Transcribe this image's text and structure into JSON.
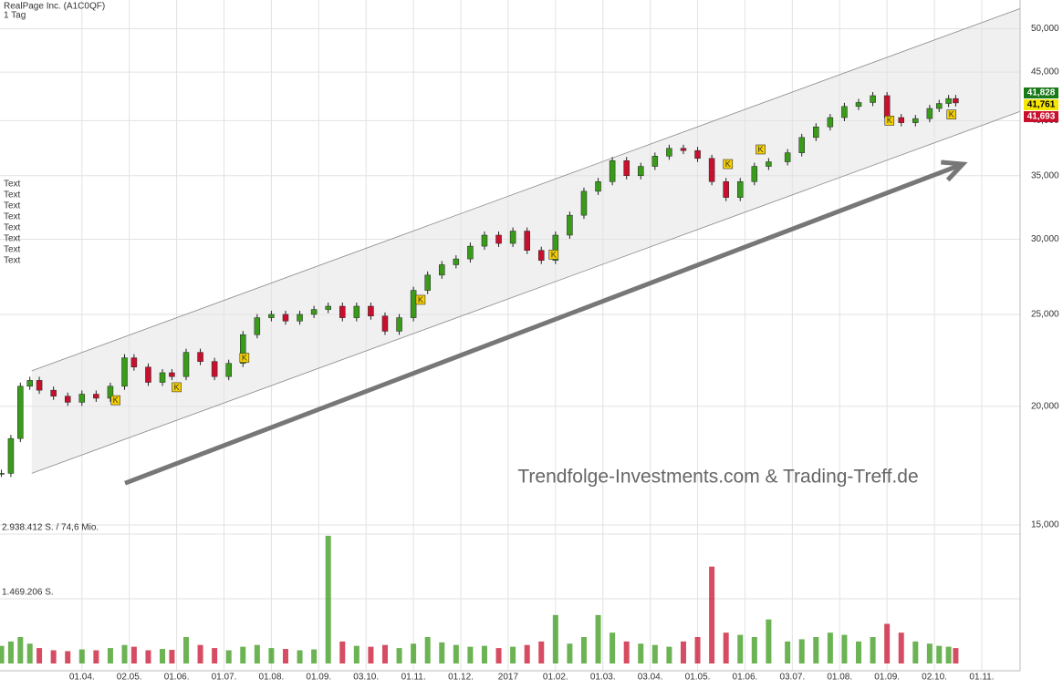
{
  "chart_data": {
    "type": "candlestick",
    "title": "RealPage Inc. (A1C0QF)",
    "subtitle": "1 Tag",
    "side_texts": [
      "Text",
      "Text",
      "Text",
      "Text",
      "Text",
      "Text",
      "Text",
      "Text"
    ],
    "watermark": "Trendfolge-Investments.com & Trading-Treff.de",
    "log_scale": true,
    "grid": true,
    "xlim": [
      1.27,
      22.81
    ],
    "xticks": [
      {
        "value": 3,
        "label": "01.04."
      },
      {
        "value": 4,
        "label": "02.05."
      },
      {
        "value": 5,
        "label": "01.06."
      },
      {
        "value": 6,
        "label": "01.07."
      },
      {
        "value": 7,
        "label": "01.08."
      },
      {
        "value": 8,
        "label": "01.09."
      },
      {
        "value": 9,
        "label": "03.10."
      },
      {
        "value": 10,
        "label": "01.11."
      },
      {
        "value": 11,
        "label": "01.12."
      },
      {
        "value": 12,
        "label": "2017"
      },
      {
        "value": 13,
        "label": "01.02."
      },
      {
        "value": 14,
        "label": "01.03."
      },
      {
        "value": 15,
        "label": "03.04."
      },
      {
        "value": 16,
        "label": "01.05."
      },
      {
        "value": 17,
        "label": "01.06."
      },
      {
        "value": 18,
        "label": "03.07."
      },
      {
        "value": 19,
        "label": "01.08."
      },
      {
        "value": 20,
        "label": "01.09."
      },
      {
        "value": 21,
        "label": "02.10."
      },
      {
        "value": 22,
        "label": "01.11."
      }
    ],
    "ylim": [
      15000,
      53600
    ],
    "yticks": [
      {
        "value": 15000,
        "label": "15,000"
      },
      {
        "value": 20000,
        "label": "20,000"
      },
      {
        "value": 25000,
        "label": "25,000"
      },
      {
        "value": 30000,
        "label": "30,000"
      },
      {
        "value": 35000,
        "label": "35,000"
      },
      {
        "value": 40000,
        "label": "40,000"
      },
      {
        "value": 45000,
        "label": "45,000"
      },
      {
        "value": 50000,
        "label": "50,000"
      }
    ],
    "up_color": "#3a9a1a",
    "down_color": "#c8102e",
    "x": [
      1.3,
      1.5,
      1.7,
      1.9,
      2.1,
      2.4,
      2.7,
      3.0,
      3.3,
      3.6,
      3.9,
      4.1,
      4.4,
      4.7,
      4.9,
      5.2,
      5.5,
      5.8,
      6.1,
      6.4,
      6.7,
      7.0,
      7.3,
      7.6,
      7.9,
      8.2,
      8.5,
      8.8,
      9.1,
      9.4,
      9.7,
      10.0,
      10.3,
      10.6,
      10.9,
      11.2,
      11.5,
      11.8,
      12.1,
      12.4,
      12.7,
      13.0,
      13.3,
      13.6,
      13.9,
      14.2,
      14.5,
      14.8,
      15.1,
      15.4,
      15.7,
      16.0,
      16.3,
      16.6,
      16.9,
      17.2,
      17.5,
      17.9,
      18.2,
      18.5,
      18.8,
      19.1,
      19.4,
      19.7,
      20.0,
      20.3,
      20.6,
      20.9,
      21.1,
      21.3,
      21.45
    ],
    "close": [
      17000,
      18500,
      21000,
      21300,
      20800,
      20500,
      20200,
      20600,
      20400,
      21000,
      22500,
      22000,
      21200,
      21700,
      21500,
      22800,
      22300,
      21500,
      22200,
      23800,
      24800,
      25000,
      24600,
      25000,
      25300,
      25500,
      24800,
      25500,
      24900,
      24000,
      24800,
      26500,
      27500,
      28200,
      28600,
      29500,
      30300,
      29700,
      30600,
      29200,
      28500,
      30300,
      31800,
      33700,
      34500,
      36300,
      35000,
      35800,
      36700,
      37400,
      37200,
      36500,
      34500,
      33200,
      34500,
      35800,
      36200,
      37000,
      38400,
      39400,
      40300,
      41400,
      41800,
      42500,
      40300,
      39800,
      40200,
      41200,
      41700,
      42200,
      41761
    ],
    "volume_ylim": [
      0,
      2938412
    ],
    "volume_ticks": [
      {
        "value": 2938412,
        "label": "2.938.412 S. / 74,6 Mio."
      },
      {
        "value": 1469206,
        "label": "1.469.206 S."
      }
    ],
    "volume": [
      400000,
      500000,
      600000,
      450000,
      350000,
      300000,
      280000,
      320000,
      300000,
      350000,
      420000,
      380000,
      300000,
      330000,
      310000,
      600000,
      420000,
      350000,
      300000,
      380000,
      420000,
      350000,
      330000,
      300000,
      320000,
      2900000,
      500000,
      400000,
      380000,
      420000,
      350000,
      450000,
      600000,
      480000,
      420000,
      380000,
      400000,
      350000,
      380000,
      420000,
      500000,
      1100000,
      450000,
      600000,
      1100000,
      700000,
      500000,
      450000,
      420000,
      380000,
      500000,
      600000,
      2200000,
      700000,
      650000,
      600000,
      1000000,
      500000,
      550000,
      600000,
      700000,
      650000,
      500000,
      600000,
      900000,
      700000,
      500000,
      450000,
      400000,
      380000,
      350000
    ],
    "channel": {
      "upper": [
        [
          1.94,
          21800
        ],
        [
          22.81,
          52500
        ]
      ],
      "lower": [
        [
          1.94,
          17000
        ],
        [
          22.81,
          40900
        ]
      ],
      "color": "#f0f0f0"
    },
    "trend_arrow": {
      "from": [
        3.91,
        16600
      ],
      "to": [
        21.6,
        36000
      ],
      "color": "#777777"
    },
    "k_markers": {
      "label": "K",
      "x": [
        3.71,
        5.0,
        6.43,
        10.15,
        12.96,
        16.64,
        17.33,
        20.05,
        21.36
      ],
      "y": [
        20300,
        20950,
        22500,
        25900,
        28900,
        36000,
        37300,
        40000,
        40600
      ],
      "color": "#f5d000"
    },
    "price_boxes": [
      {
        "label": "41,828",
        "value": 41828,
        "color": "#1a7a1a"
      },
      {
        "label": "41,761",
        "value": 41761,
        "color": "#f5e600"
      },
      {
        "label": "41,693",
        "value": 41693,
        "color": "#c8102e"
      }
    ]
  }
}
